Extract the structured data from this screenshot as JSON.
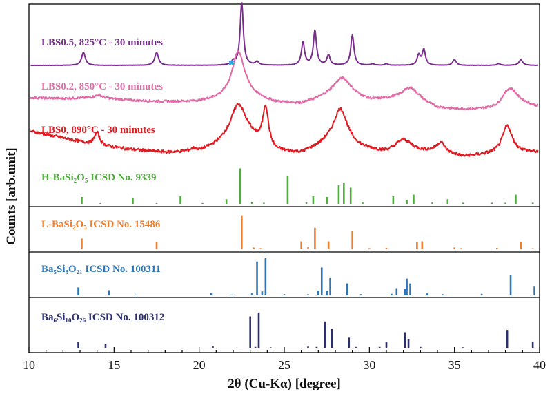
{
  "chart_data": {
    "type": "line",
    "xlabel": "2θ (Cu-Kα) [degree]",
    "ylabel": "Counts [arb.unit]",
    "xlim": [
      10,
      40
    ],
    "xticks": [
      10,
      15,
      20,
      25,
      30,
      35,
      40
    ],
    "grid": false,
    "patterns": [
      {
        "name": "LBS0.5, 825°C - 30 minutes",
        "color": "#7B2C8F",
        "baseline": 0.08,
        "noise": 0.005,
        "base_curve": [
          [
            10,
            0.0
          ],
          [
            40,
            0.0
          ]
        ],
        "peaks": [
          [
            13.2,
            0.45,
            0.13
          ],
          [
            17.5,
            0.45,
            0.13
          ],
          [
            22.0,
            0.12,
            0.12
          ],
          [
            22.5,
            2.2,
            0.11
          ],
          [
            23.4,
            0.12,
            0.12
          ],
          [
            26.1,
            0.8,
            0.11
          ],
          [
            26.8,
            1.2,
            0.11
          ],
          [
            27.6,
            0.35,
            0.11
          ],
          [
            29.0,
            1.05,
            0.11
          ],
          [
            30.2,
            0.05,
            0.12
          ],
          [
            31.0,
            0.05,
            0.12
          ],
          [
            32.9,
            0.35,
            0.11
          ],
          [
            33.2,
            0.55,
            0.11
          ],
          [
            35.0,
            0.2,
            0.12
          ],
          [
            37.6,
            0.06,
            0.12
          ],
          [
            38.9,
            0.2,
            0.13
          ]
        ]
      },
      {
        "name": "LBS0.2, 850°C - 30 minutes",
        "color": "#E26BA8",
        "baseline": 0.26,
        "noise": 0.04,
        "base_curve": [
          [
            10,
            0.45
          ],
          [
            12,
            0.42
          ],
          [
            14,
            0.45
          ],
          [
            16,
            0.35
          ],
          [
            18,
            0.3
          ],
          [
            20,
            0.3
          ],
          [
            21.5,
            0.4
          ],
          [
            23,
            0.45
          ],
          [
            24.5,
            0.25
          ],
          [
            26,
            0.2
          ],
          [
            27.5,
            0.4
          ],
          [
            28.5,
            0.45
          ],
          [
            30,
            0.3
          ],
          [
            31.5,
            0.35
          ],
          [
            33,
            0.25
          ],
          [
            34,
            0.05
          ],
          [
            36,
            0.0
          ],
          [
            37.5,
            0.05
          ],
          [
            38.5,
            0.3
          ],
          [
            40,
            0.1
          ]
        ],
        "peaks": [
          [
            14.1,
            0.1,
            0.25
          ],
          [
            22.3,
            1.7,
            0.45
          ],
          [
            28.4,
            0.7,
            0.7
          ],
          [
            32.4,
            0.5,
            0.6
          ],
          [
            38.2,
            0.55,
            0.5
          ]
        ]
      },
      {
        "name": "LBS0, 890°C - 30 minutes",
        "color": "#E11B22",
        "baseline": 0.42,
        "noise": 0.05,
        "base_curve": [
          [
            10,
            0.95
          ],
          [
            12,
            0.7
          ],
          [
            14,
            0.45
          ],
          [
            16,
            0.3
          ],
          [
            18,
            0.2
          ],
          [
            20,
            0.2
          ],
          [
            21.5,
            0.5
          ],
          [
            23,
            0.6
          ],
          [
            24.5,
            0.2
          ],
          [
            26,
            0.15
          ],
          [
            27.5,
            0.45
          ],
          [
            29,
            0.35
          ],
          [
            31,
            0.15
          ],
          [
            33,
            0.2
          ],
          [
            34,
            0.25
          ],
          [
            35.5,
            0.05
          ],
          [
            37.5,
            0.15
          ],
          [
            39,
            0.2
          ],
          [
            40,
            0.2
          ]
        ],
        "peaks": [
          [
            14.0,
            0.45,
            0.18
          ],
          [
            19.7,
            0.1,
            0.3
          ],
          [
            22.3,
            1.3,
            0.55
          ],
          [
            23.9,
            1.35,
            0.2
          ],
          [
            28.3,
            1.3,
            0.5
          ],
          [
            32.0,
            0.45,
            0.6
          ],
          [
            34.2,
            0.3,
            0.25
          ],
          [
            38.1,
            0.95,
            0.35
          ]
        ]
      }
    ],
    "references": [
      {
        "name": "H-BaSi₂O₅ ICSD No. 9339",
        "color": "#4DAF3A",
        "sticks": [
          [
            13.1,
            0.18
          ],
          [
            14.2,
            0.02
          ],
          [
            16.1,
            0.15
          ],
          [
            17.5,
            0.02
          ],
          [
            18.9,
            0.2
          ],
          [
            20.2,
            0.02
          ],
          [
            21.6,
            0.12
          ],
          [
            22.4,
            0.92
          ],
          [
            23.1,
            0.05
          ],
          [
            23.8,
            0.03
          ],
          [
            25.2,
            0.72
          ],
          [
            26.3,
            0.04
          ],
          [
            26.7,
            0.2
          ],
          [
            27.5,
            0.18
          ],
          [
            28.2,
            0.48
          ],
          [
            28.5,
            0.55
          ],
          [
            28.9,
            0.42
          ],
          [
            29.6,
            0.04
          ],
          [
            31.4,
            0.2
          ],
          [
            32.2,
            0.1
          ],
          [
            32.6,
            0.24
          ],
          [
            33.7,
            0.04
          ],
          [
            34.6,
            0.12
          ],
          [
            35.5,
            0.03
          ],
          [
            37.2,
            0.03
          ],
          [
            38.0,
            0.03
          ],
          [
            38.6,
            0.24
          ],
          [
            39.6,
            0.03
          ]
        ]
      },
      {
        "name": "L-BaSi₂O₅ ICSD No. 15486",
        "color": "#EE7F2D",
        "sticks": [
          [
            13.1,
            0.3
          ],
          [
            17.5,
            0.2
          ],
          [
            22.5,
            0.95
          ],
          [
            23.2,
            0.05
          ],
          [
            23.6,
            0.03
          ],
          [
            26.0,
            0.22
          ],
          [
            26.4,
            0.06
          ],
          [
            26.8,
            0.6
          ],
          [
            27.6,
            0.22
          ],
          [
            29.0,
            0.5
          ],
          [
            30.0,
            0.03
          ],
          [
            31.0,
            0.04
          ],
          [
            32.8,
            0.2
          ],
          [
            33.1,
            0.22
          ],
          [
            35.0,
            0.05
          ],
          [
            35.4,
            0.03
          ],
          [
            37.5,
            0.04
          ],
          [
            38.9,
            0.2
          ],
          [
            39.6,
            0.03
          ]
        ]
      },
      {
        "name": "Ba₅Si₈O₂₁ ICSD No. 100311",
        "color": "#2E75B6",
        "sticks": [
          [
            12.9,
            0.2
          ],
          [
            14.7,
            0.13
          ],
          [
            16.3,
            0.02
          ],
          [
            20.7,
            0.07
          ],
          [
            21.9,
            0.02
          ],
          [
            23.1,
            0.05
          ],
          [
            23.4,
            0.85
          ],
          [
            23.7,
            0.1
          ],
          [
            23.9,
            0.93
          ],
          [
            25.0,
            0.03
          ],
          [
            26.4,
            0.03
          ],
          [
            27.0,
            0.12
          ],
          [
            27.2,
            0.7
          ],
          [
            27.5,
            0.12
          ],
          [
            27.7,
            0.45
          ],
          [
            28.7,
            0.3
          ],
          [
            29.5,
            0.03
          ],
          [
            31.3,
            0.04
          ],
          [
            31.6,
            0.18
          ],
          [
            32.1,
            0.16
          ],
          [
            32.2,
            0.42
          ],
          [
            32.4,
            0.3
          ],
          [
            33.4,
            0.05
          ],
          [
            34.3,
            0.03
          ],
          [
            36.6,
            0.04
          ],
          [
            38.3,
            0.5
          ],
          [
            39.7,
            0.22
          ]
        ]
      },
      {
        "name": "Ba₆Si₁₀O₂₆ ICSD No. 100312",
        "color": "#2B2F6B",
        "sticks": [
          [
            12.9,
            0.17
          ],
          [
            14.5,
            0.12
          ],
          [
            20.8,
            0.06
          ],
          [
            22.2,
            0.02
          ],
          [
            23.0,
            0.83
          ],
          [
            23.3,
            0.04
          ],
          [
            23.5,
            0.93
          ],
          [
            24.2,
            0.03
          ],
          [
            26.4,
            0.05
          ],
          [
            26.9,
            0.04
          ],
          [
            27.4,
            0.7
          ],
          [
            27.8,
            0.5
          ],
          [
            28.8,
            0.28
          ],
          [
            29.2,
            0.04
          ],
          [
            30.6,
            0.04
          ],
          [
            31.0,
            0.17
          ],
          [
            32.1,
            0.42
          ],
          [
            32.3,
            0.25
          ],
          [
            33.0,
            0.04
          ],
          [
            35.5,
            0.03
          ],
          [
            38.1,
            0.48
          ],
          [
            39.6,
            0.18
          ]
        ]
      }
    ],
    "annotations": [
      {
        "symbol": "✖",
        "x": 21.9,
        "color": "#29A8E0"
      }
    ]
  }
}
